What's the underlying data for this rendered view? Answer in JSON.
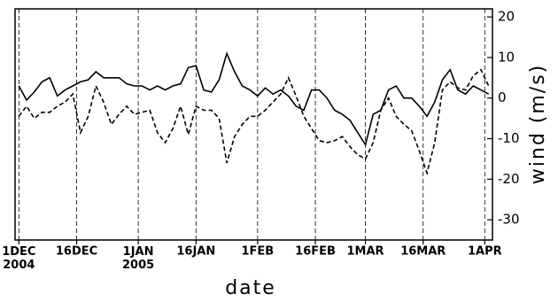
{
  "chart_data": {
    "type": "line",
    "x_label": "date",
    "y_label": "wind (m/s)",
    "x": [
      "2004-12-01",
      "2004-12-03",
      "2004-12-05",
      "2004-12-07",
      "2004-12-09",
      "2004-12-11",
      "2004-12-13",
      "2004-12-15",
      "2004-12-17",
      "2004-12-19",
      "2004-12-21",
      "2004-12-23",
      "2004-12-25",
      "2004-12-27",
      "2004-12-29",
      "2004-12-31",
      "2005-01-02",
      "2005-01-04",
      "2005-01-06",
      "2005-01-08",
      "2005-01-10",
      "2005-01-12",
      "2005-01-14",
      "2005-01-16",
      "2005-01-18",
      "2005-01-20",
      "2005-01-22",
      "2005-01-24",
      "2005-01-26",
      "2005-01-28",
      "2005-01-30",
      "2005-02-01",
      "2005-02-03",
      "2005-02-05",
      "2005-02-07",
      "2005-02-09",
      "2005-02-11",
      "2005-02-13",
      "2005-02-15",
      "2005-02-17",
      "2005-02-19",
      "2005-02-21",
      "2005-02-23",
      "2005-02-25",
      "2005-02-27",
      "2005-03-01",
      "2005-03-03",
      "2005-03-05",
      "2005-03-07",
      "2005-03-09",
      "2005-03-11",
      "2005-03-13",
      "2005-03-15",
      "2005-03-17",
      "2005-03-19",
      "2005-03-21",
      "2005-03-23",
      "2005-03-25",
      "2005-03-27",
      "2005-03-29",
      "2005-03-31",
      "2005-04-02"
    ],
    "series": [
      {
        "color": "#000000",
        "style": "solid",
        "values": [
          3,
          -0.5,
          1.5,
          4,
          5,
          0.5,
          2,
          3,
          4,
          4.5,
          6.5,
          5,
          5,
          5,
          3.5,
          3,
          3,
          2,
          3,
          2,
          3,
          3.5,
          7.5,
          8,
          2,
          1.5,
          4.5,
          11,
          6.5,
          3,
          2,
          0.5,
          2.5,
          1,
          2,
          0.5,
          -2,
          -3,
          2,
          2,
          0,
          -3,
          -4,
          -5.5,
          -8.5,
          -11.5,
          -4,
          -3,
          2,
          3,
          0,
          0,
          -2,
          -4.5,
          -1,
          4.5,
          7,
          2,
          1,
          3,
          2,
          1
        ]
      },
      {
        "color": "#000000",
        "style": "dashed",
        "values": [
          -4.5,
          -2,
          -5,
          -3.5,
          -3.5,
          -2,
          -1,
          1,
          -8.5,
          -4.5,
          3,
          -1,
          -6.5,
          -4,
          -2,
          -4,
          -3.5,
          -3,
          -8.5,
          -11,
          -7.5,
          -2,
          -9,
          -2,
          -3,
          -3,
          -5,
          -16,
          -9.5,
          -6.5,
          -4.5,
          -4.5,
          -3,
          -1,
          1,
          5,
          0.5,
          -4.5,
          -7.5,
          -10.5,
          -11,
          -10.5,
          -9.5,
          -12,
          -14,
          -15,
          -11,
          -3,
          0,
          -4.5,
          -6.5,
          -8,
          -13,
          -18.5,
          -11,
          2,
          4,
          2.5,
          2,
          5.5,
          7,
          3
        ]
      }
    ],
    "xlim": [
      "2004-11-30",
      "2005-04-03"
    ],
    "xticks": [
      {
        "value": "2004-12-01",
        "label": "1DEC 2004"
      },
      {
        "value": "2004-12-16",
        "label": "16DEC"
      },
      {
        "value": "2005-01-01",
        "label": "1JAN 2005"
      },
      {
        "value": "2005-01-16",
        "label": "16JAN"
      },
      {
        "value": "2005-02-01",
        "label": "1FEB"
      },
      {
        "value": "2005-02-16",
        "label": "16FEB"
      },
      {
        "value": "2005-03-01",
        "label": "1MAR"
      },
      {
        "value": "2005-03-16",
        "label": "16MAR"
      },
      {
        "value": "2005-04-01",
        "label": "1APR"
      }
    ],
    "ylim": [
      -35,
      22
    ],
    "yticks": [
      -30,
      -20,
      -10,
      0,
      10,
      20
    ],
    "y_axis_side": "right",
    "grid": "x"
  }
}
